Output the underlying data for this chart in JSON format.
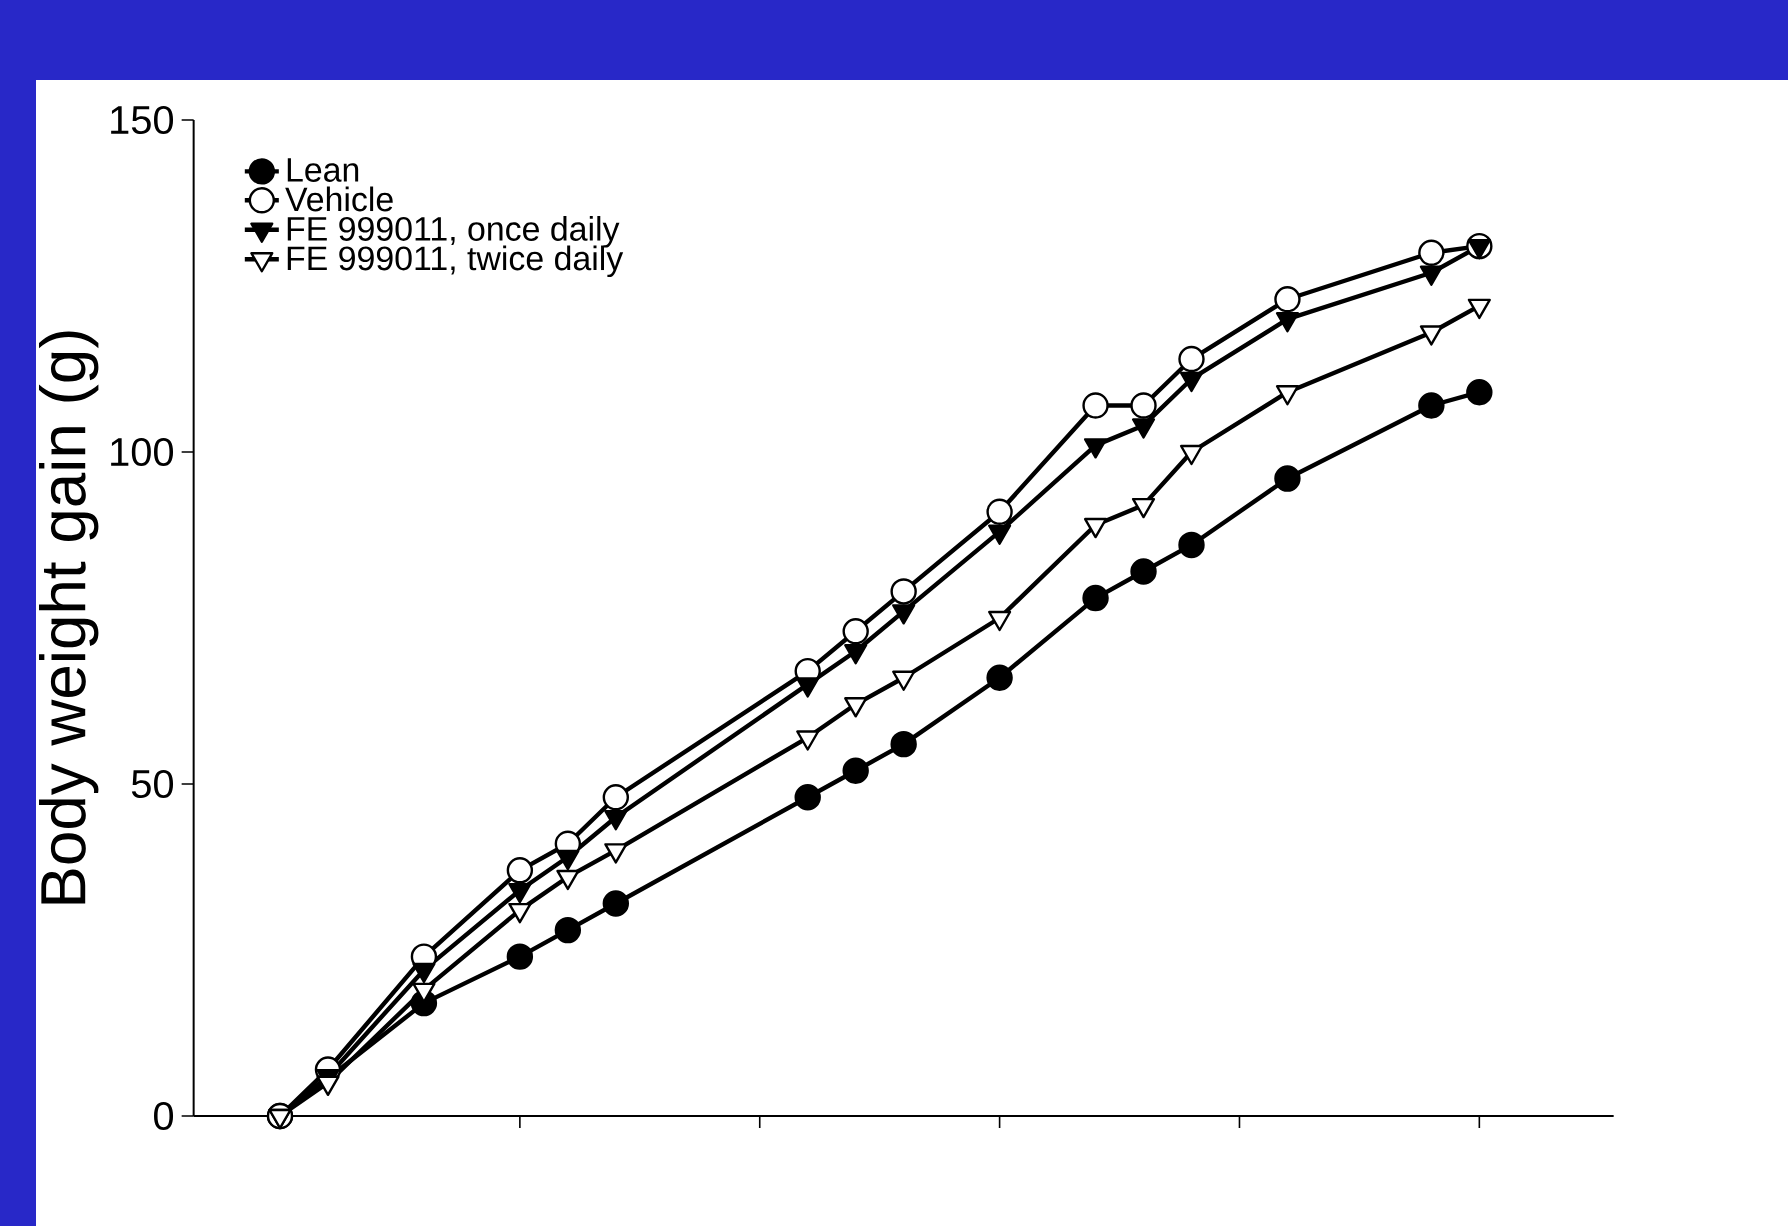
{
  "chart_data": {
    "type": "line",
    "ylabel": "Body weight gain (g)",
    "categories": [
      null,
      null,
      null,
      null,
      null,
      null,
      null,
      null,
      null,
      null,
      null,
      null,
      null,
      null,
      null,
      null,
      null,
      null,
      null,
      null,
      null,
      null,
      null,
      null,
      null,
      null
    ],
    "ylim": [
      0,
      150
    ],
    "yticks": [
      0,
      50,
      100,
      150
    ],
    "legend": "top left",
    "line_style": "solid",
    "series": [
      {
        "name": "Lean",
        "color": "#000000",
        "marker": "circle",
        "values": [
          0,
          null,
          null,
          17,
          null,
          24,
          28,
          32,
          null,
          null,
          null,
          48,
          52,
          56,
          null,
          66,
          null,
          78,
          82,
          86,
          null,
          96,
          null,
          null,
          107,
          109
        ]
      },
      {
        "name": "Vehicle",
        "color": "#000000",
        "marker": "circle",
        "values": [
          0,
          7,
          null,
          24,
          null,
          37,
          41,
          48,
          null,
          null,
          null,
          67,
          73,
          79,
          null,
          91,
          null,
          107,
          107,
          114,
          null,
          123,
          null,
          null,
          130,
          131
        ]
      },
      {
        "name": "FE 999011, once daily",
        "color": "#000000",
        "marker": "triangle",
        "values": [
          0,
          6,
          null,
          22,
          null,
          34,
          39,
          45,
          null,
          null,
          null,
          65,
          70,
          76,
          null,
          88,
          null,
          101,
          104,
          111,
          null,
          120,
          null,
          null,
          127,
          131
        ]
      },
      {
        "name": "FE 999011, twice daily",
        "color": "#000000",
        "marker": "triangle",
        "values": [
          0,
          5,
          null,
          19,
          null,
          31,
          36,
          40,
          null,
          null,
          null,
          57,
          62,
          66,
          null,
          75,
          null,
          89,
          92,
          100,
          null,
          109,
          null,
          null,
          118,
          122
        ]
      }
    ]
  }
}
